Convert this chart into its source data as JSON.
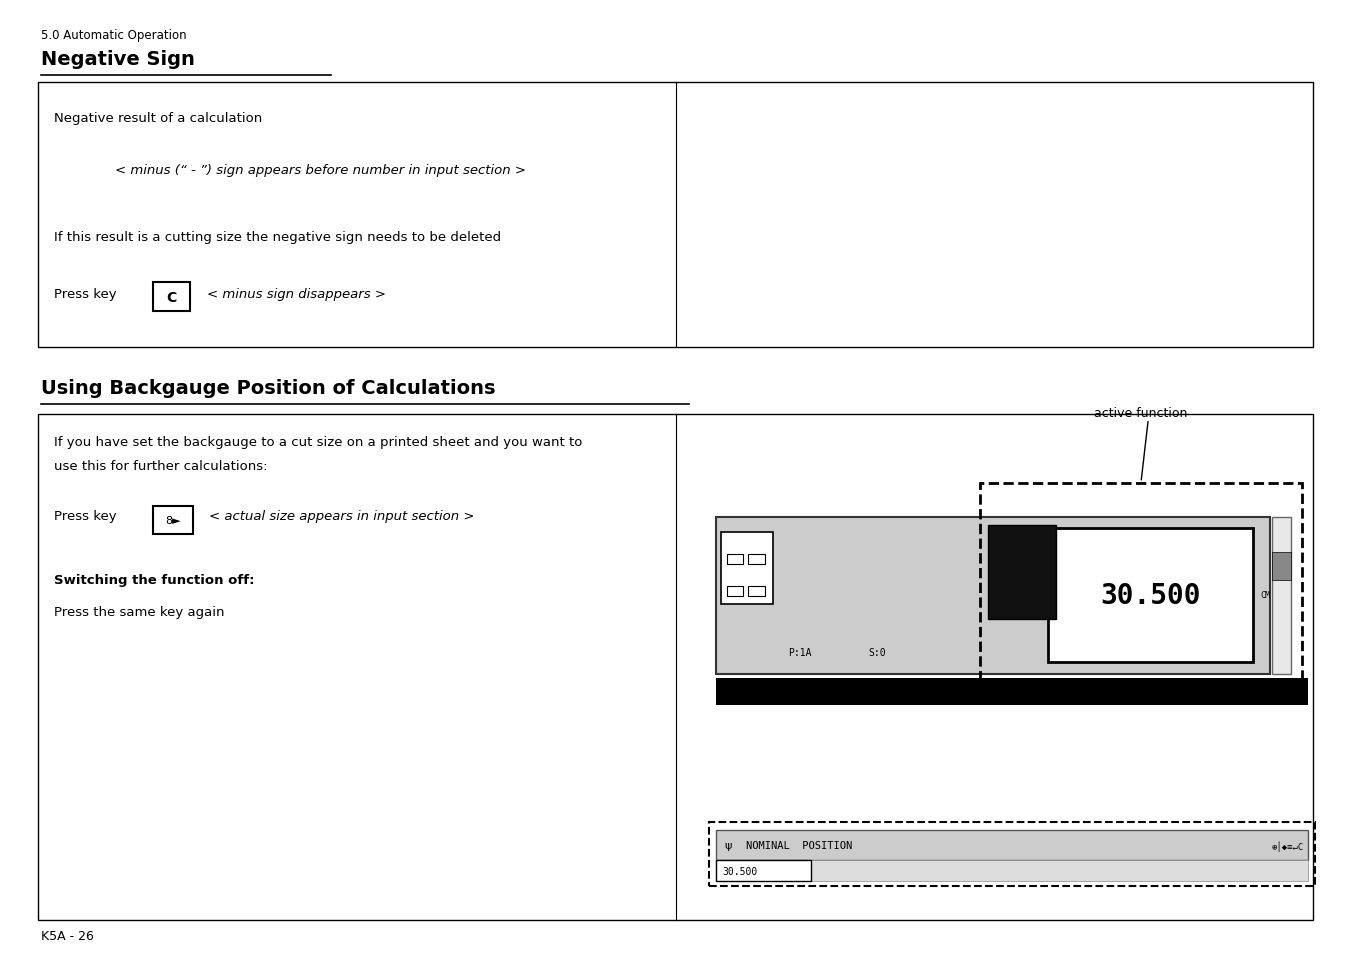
{
  "bg_color": "#ffffff",
  "page_label": "5.0 Automatic Operation",
  "title1": "Negative Sign",
  "title2": "Using Backgauge Position of Calculations",
  "footer": "K5A - 26",
  "neg_box": {
    "text_line1": "Negative result of a calculation",
    "text_line2": "< minus (“ - ”) sign appears before number in input section >",
    "text_line3": "If this result is a cutting size the negative sign needs to be deleted",
    "text_line4_pre": "Press key",
    "key_label": "C",
    "text_line4_post": "< minus sign disappears >"
  },
  "backgauge_box": {
    "text_line1": "If you have set the backgauge to a cut size on a printed sheet and you want to",
    "text_line2": "use this for further calculations:",
    "text_line3_pre": "Press key",
    "key_label": "8►",
    "text_line3_post": "< actual size appears in input section >",
    "bold_line": "Switching the function off:",
    "text_line5": "Press the same key again"
  },
  "annotation_label": "active function"
}
